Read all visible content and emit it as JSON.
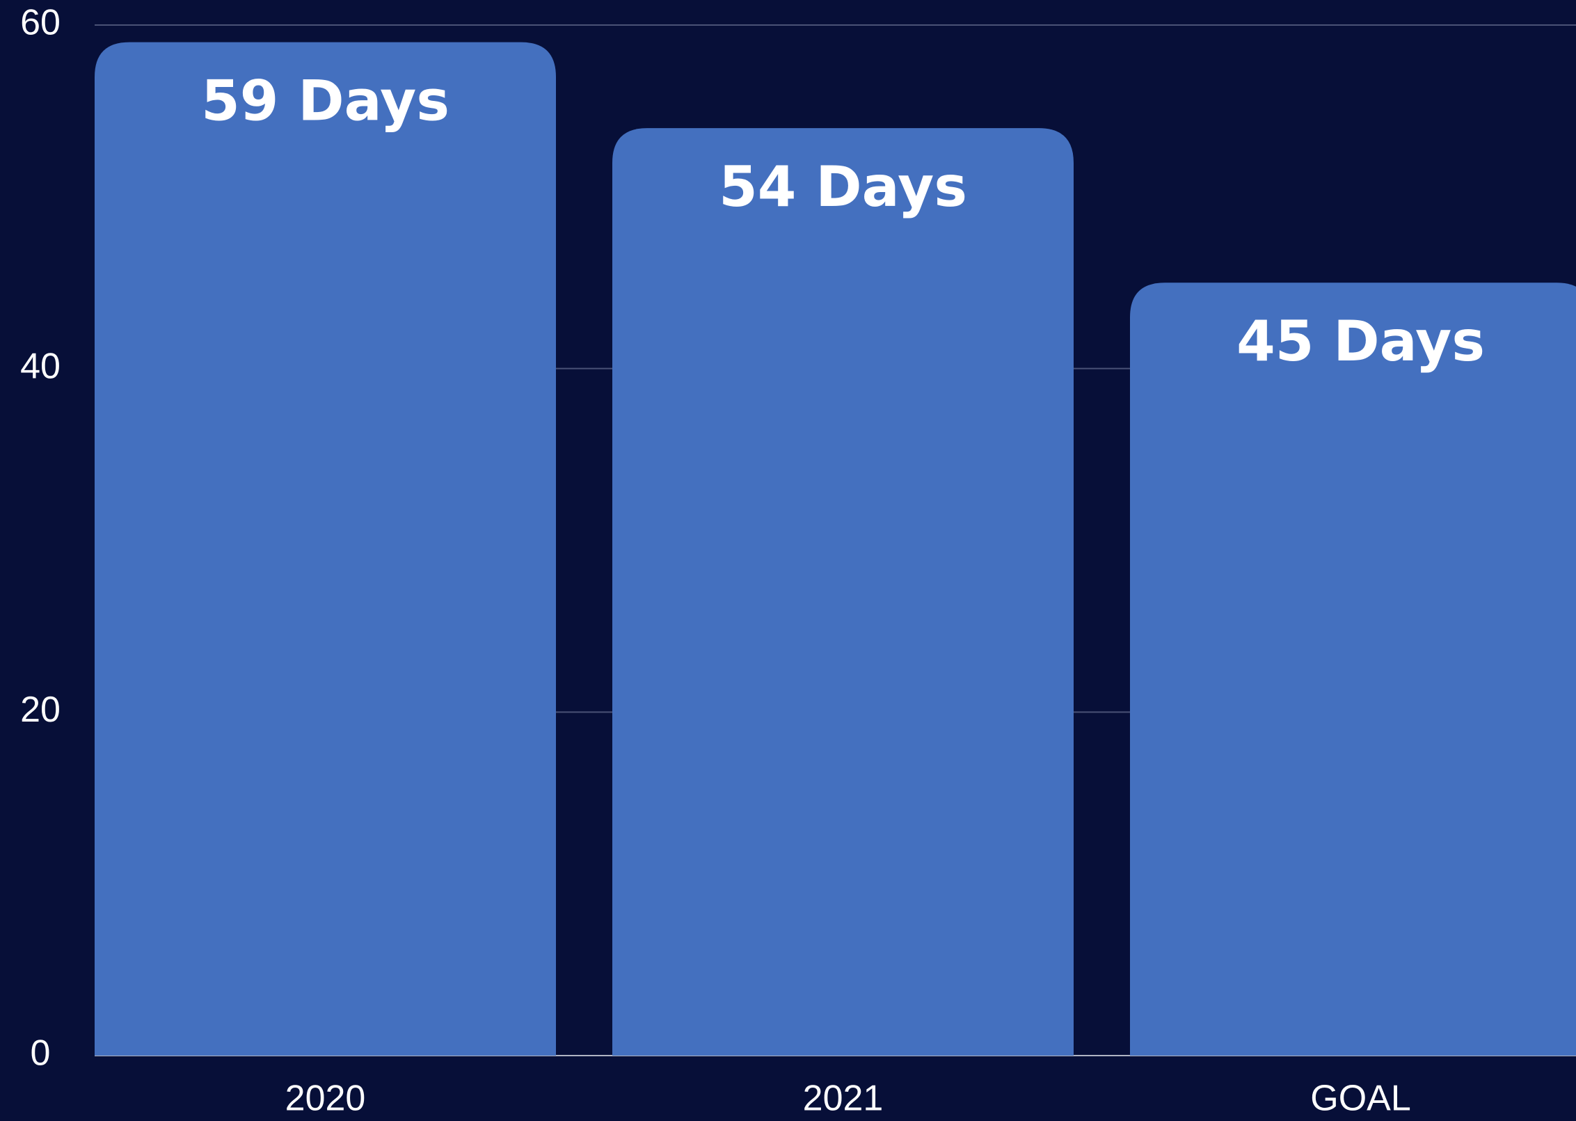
{
  "chart_data": {
    "type": "bar",
    "categories": [
      "2020",
      "2021",
      "GOAL"
    ],
    "values": [
      59,
      54,
      45
    ],
    "value_labels": [
      "59 Days",
      "54 Days",
      "45 Days"
    ],
    "color": "#4470bf",
    "ylim": [
      0,
      60
    ],
    "yticks": [
      0,
      20,
      40,
      60
    ],
    "grid": true
  }
}
